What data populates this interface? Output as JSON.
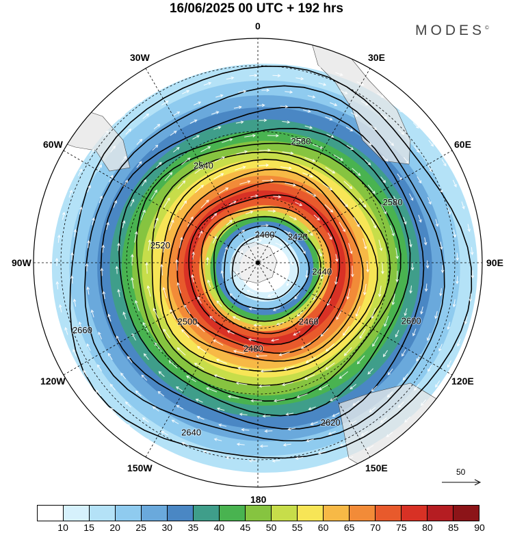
{
  "title": "16/06/2025  00 UTC  + 192 hrs",
  "brand": "MODES",
  "brand_mark": "©",
  "longitude_labels": [
    {
      "text": "0",
      "lon": 0
    },
    {
      "text": "30E",
      "lon": 30
    },
    {
      "text": "60E",
      "lon": 60
    },
    {
      "text": "90E",
      "lon": 90
    },
    {
      "text": "120E",
      "lon": 120
    },
    {
      "text": "150E",
      "lon": 150
    },
    {
      "text": "180",
      "lon": 180
    },
    {
      "text": "150W",
      "lon": -150
    },
    {
      "text": "120W",
      "lon": -120
    },
    {
      "text": "90W",
      "lon": -90
    },
    {
      "text": "60W",
      "lon": -60
    },
    {
      "text": "30W",
      "lon": -30
    }
  ],
  "wind_reference": {
    "value": "50"
  },
  "colorbar": {
    "levels": [
      "10",
      "15",
      "20",
      "25",
      "30",
      "35",
      "40",
      "45",
      "50",
      "55",
      "60",
      "65",
      "70",
      "75",
      "80",
      "85",
      "90"
    ],
    "colors": [
      "#ffffff",
      "#d6f1fc",
      "#b4e2f7",
      "#8fcbef",
      "#6aa9dc",
      "#4a87c4",
      "#3f9e8a",
      "#49b350",
      "#86c440",
      "#c7dd4a",
      "#f7e556",
      "#f7b946",
      "#f28b38",
      "#e85a2c",
      "#d83125",
      "#b51d22",
      "#8c1418"
    ]
  },
  "contour_labels": [
    "2400",
    "2420",
    "2440",
    "2460",
    "2480",
    "2500",
    "2520",
    "2540",
    "2560",
    "2580",
    "2600",
    "2620",
    "2640",
    "2660"
  ]
}
